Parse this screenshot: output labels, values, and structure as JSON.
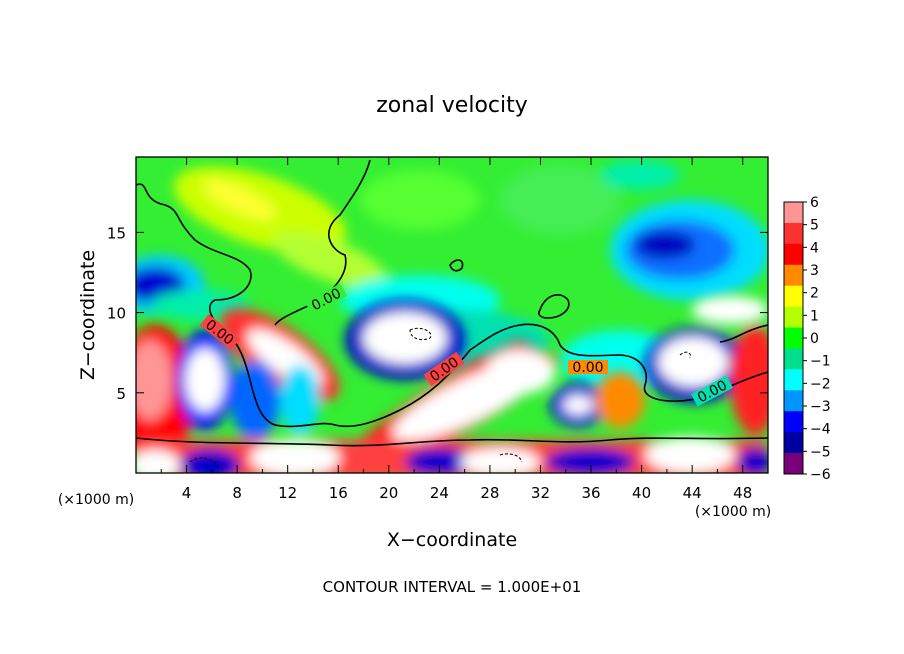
{
  "chart_data": {
    "type": "heatmap",
    "title": "zonal velocity",
    "xlabel": "X−coordinate",
    "ylabel": "Z−coordinate",
    "x_unit_left": "(×1000 m)",
    "x_unit_right": "(×1000 m)",
    "x_ticks": [
      "4",
      "8",
      "12",
      "16",
      "20",
      "24",
      "28",
      "32",
      "36",
      "40",
      "44",
      "48"
    ],
    "y_ticks": [
      "5",
      "10",
      "15"
    ],
    "xlim": [
      0,
      50
    ],
    "ylim": [
      0,
      19.7
    ],
    "contour_labels": [
      "0.00",
      "0.00",
      "0.00",
      "0.00",
      "0.00"
    ],
    "footer": "CONTOUR INTERVAL = 1.000E+01",
    "colorbar": {
      "labels": [
        "6",
        "5",
        "4",
        "3",
        "2",
        "1",
        "0",
        "−1",
        "−2",
        "−3",
        "−4",
        "−5",
        "−6"
      ],
      "colors": [
        "#ff9696",
        "#ff3232",
        "#ff0000",
        "#ff8a00",
        "#ffff00",
        "#b4ff00",
        "#00ff00",
        "#00e08c",
        "#00ffff",
        "#0096ff",
        "#0000ff",
        "#0000a0",
        "#780078"
      ],
      "range": [
        -6,
        6
      ]
    }
  }
}
